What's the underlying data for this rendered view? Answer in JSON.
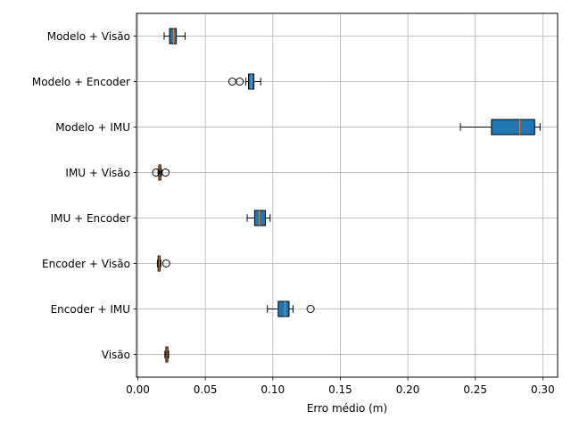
{
  "chart_data": {
    "type": "boxplot",
    "orientation": "horizontal",
    "title": "",
    "xlabel": "Erro médio (m)",
    "ylabel": "",
    "xlim": [
      -0.001,
      0.311
    ],
    "xticks": [
      "0.00",
      "0.05",
      "0.10",
      "0.15",
      "0.20",
      "0.25",
      "0.30"
    ],
    "xtick_values": [
      0.0,
      0.05,
      0.1,
      0.15,
      0.2,
      0.25,
      0.3
    ],
    "grid": true,
    "box_color": "#1f77b4",
    "median_color": "#ff7f0e",
    "categories": [
      "Modelo + Visão",
      "Modelo + Encoder",
      "Modelo + IMU",
      "IMU + Visão",
      "IMU + Encoder",
      "Encoder + Visão",
      "Encoder + IMU",
      "Visão"
    ],
    "boxes": [
      {
        "label": "Modelo + Visão",
        "whisker_low": 0.0195,
        "q1": 0.0235,
        "median": 0.0265,
        "q3": 0.0285,
        "whisker_high": 0.035,
        "outliers": []
      },
      {
        "label": "Modelo + Encoder",
        "whisker_low": 0.08,
        "q1": 0.082,
        "median": 0.084,
        "q3": 0.086,
        "whisker_high": 0.091,
        "outliers": [
          0.07,
          0.0755
        ]
      },
      {
        "label": "Modelo + IMU",
        "whisker_low": 0.239,
        "q1": 0.262,
        "median": 0.283,
        "q3": 0.294,
        "whisker_high": 0.298,
        "outliers": []
      },
      {
        "label": "IMU + Visão",
        "whisker_low": 0.015,
        "q1": 0.0155,
        "median": 0.0162,
        "q3": 0.017,
        "whisker_high": 0.0175,
        "outliers": [
          0.0135,
          0.0205
        ]
      },
      {
        "label": "IMU + Encoder",
        "whisker_low": 0.081,
        "q1": 0.0865,
        "median": 0.09,
        "q3": 0.0945,
        "whisker_high": 0.098,
        "outliers": []
      },
      {
        "label": "Encoder + Visão",
        "whisker_low": 0.0145,
        "q1": 0.015,
        "median": 0.0157,
        "q3": 0.0165,
        "whisker_high": 0.017,
        "outliers": [
          0.021
        ]
      },
      {
        "label": "Encoder + IMU",
        "whisker_low": 0.096,
        "q1": 0.104,
        "median": 0.109,
        "q3": 0.112,
        "whisker_high": 0.115,
        "outliers": [
          0.128
        ]
      },
      {
        "label": "Visão",
        "whisker_low": 0.02,
        "q1": 0.0208,
        "median": 0.0215,
        "q3": 0.0222,
        "whisker_high": 0.0228,
        "outliers": []
      }
    ]
  }
}
